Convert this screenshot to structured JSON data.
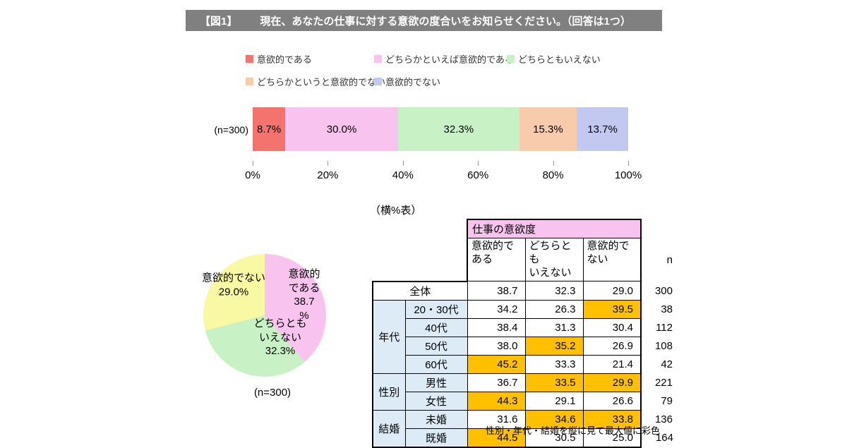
{
  "title": {
    "tag": "【図1】",
    "text": "現在、あなたの仕事に対する意欲の度合いをお知らせください。（回答は1つ）"
  },
  "legend": [
    {
      "label": "意欲的である",
      "color": "#f4736e"
    },
    {
      "label": "どちらかといえば意欲的である",
      "color": "#f9c3ef"
    },
    {
      "label": "どちらともいえない",
      "color": "#c8f2c6"
    },
    {
      "label": "どちらかというと意欲的でない",
      "color": "#f8cbad"
    },
    {
      "label": "意欲的でない",
      "color": "#c3c8f0"
    }
  ],
  "chart_data": [
    {
      "type": "bar",
      "subtype": "horizontal-stacked",
      "group_label": "(n=300)",
      "xlim": [
        0,
        100
      ],
      "x_ticks": [
        "0%",
        "20%",
        "40%",
        "60%",
        "80%",
        "100%"
      ],
      "series": [
        {
          "name": "意欲的である",
          "value": 8.7,
          "display": "8.7%",
          "color": "#f4736e"
        },
        {
          "name": "どちらかといえば意欲的である",
          "value": 30.0,
          "display": "30.0%",
          "color": "#f9c3ef"
        },
        {
          "name": "どちらともいえない",
          "value": 32.3,
          "display": "32.3%",
          "color": "#c8f2c6"
        },
        {
          "name": "どちらかというと意欲的でない",
          "value": 15.3,
          "display": "15.3%",
          "color": "#f8cbad"
        },
        {
          "name": "意欲的でない",
          "value": 13.7,
          "display": "13.7%",
          "color": "#c3c8f0"
        }
      ]
    },
    {
      "type": "pie",
      "caption": "(n=300)",
      "slices": [
        {
          "label": "意欲的である",
          "value": 38.7,
          "display": "意欲的\nである\n38.7\n%",
          "color": "#f9c3ef"
        },
        {
          "label": "どちらともいえない",
          "value": 32.3,
          "display": "どちらとも\nいえない\n32.3%",
          "color": "#c8f2c6"
        },
        {
          "label": "意欲的でない",
          "value": 29.0,
          "display": "意欲的でない\n29.0%",
          "color": "#f9f9a3"
        }
      ]
    },
    {
      "type": "table",
      "caption": "（横%表）",
      "header_title": "仕事の意欲度",
      "col_headers": [
        "意欲的で\nある",
        "どちらとも\nいえない",
        "意欲的で\nない"
      ],
      "n_header": "n",
      "highlight_color": "#ffc000",
      "rows": [
        {
          "label": "全体",
          "values": [
            "38.7",
            "32.3",
            "29.0"
          ],
          "n": "300",
          "highlight": []
        },
        {
          "group": "年代",
          "group_span": 4,
          "label": "20・30代",
          "values": [
            "34.2",
            "26.3",
            "39.5"
          ],
          "n": "38",
          "highlight": [
            2
          ]
        },
        {
          "label": "40代",
          "values": [
            "38.4",
            "31.3",
            "30.4"
          ],
          "n": "112",
          "highlight": []
        },
        {
          "label": "50代",
          "values": [
            "38.0",
            "35.2",
            "26.9"
          ],
          "n": "108",
          "highlight": [
            1
          ]
        },
        {
          "label": "60代",
          "values": [
            "45.2",
            "33.3",
            "21.4"
          ],
          "n": "42",
          "highlight": [
            0
          ]
        },
        {
          "group": "性別",
          "group_span": 2,
          "label": "男性",
          "values": [
            "36.7",
            "33.5",
            "29.9"
          ],
          "n": "221",
          "highlight": [
            1,
            2
          ]
        },
        {
          "label": "女性",
          "values": [
            "44.3",
            "29.1",
            "26.6"
          ],
          "n": "79",
          "highlight": [
            0
          ]
        },
        {
          "group": "結婚",
          "group_span": 2,
          "label": "未婚",
          "values": [
            "31.6",
            "34.6",
            "33.8"
          ],
          "n": "136",
          "highlight": [
            1,
            2
          ]
        },
        {
          "label": "既婚",
          "values": [
            "44.5",
            "30.5",
            "25.0"
          ],
          "n": "164",
          "highlight": [
            0
          ]
        }
      ],
      "footnote": "性別・年代・結婚を縦に見て最大値に彩色"
    }
  ]
}
